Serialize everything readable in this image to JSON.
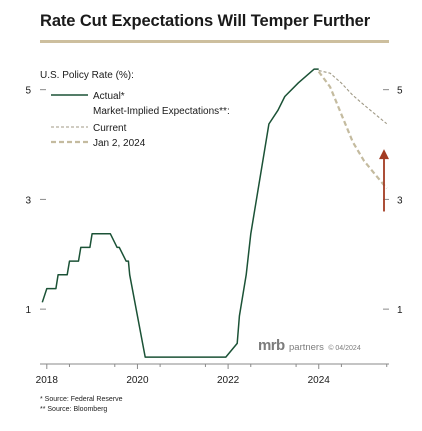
{
  "title": "Rate Cut Expectations Will Temper Further",
  "brand": {
    "mrb": "mrb",
    "partners": "partners",
    "date": "© 04/2024"
  },
  "footnotes": [
    "*  Source: Federal Reserve",
    "** Source: Bloomberg"
  ],
  "colors": {
    "actual": "#1b5236",
    "expectations": "#c4bb9f",
    "arrow": "#a33b22",
    "rule": "#cdbf9e",
    "axis": "#8a8a8a"
  },
  "chart_data": {
    "type": "line",
    "title": "Rate Cut Expectations Will Temper Further",
    "ylabel": "U.S. Policy Rate (%):",
    "xlabel": "",
    "xlim": [
      2017.85,
      2025.55
    ],
    "ylim": [
      0,
      5.65
    ],
    "xticks": [
      2018,
      2020,
      2022,
      2024
    ],
    "xtick_labels": [
      "2018",
      "2020",
      "2022",
      "2024"
    ],
    "yticks": [
      1,
      3,
      5
    ],
    "ytick_labels": [
      "1",
      "3",
      "5"
    ],
    "grid": false,
    "legend_placement": "top-left",
    "legend": [
      {
        "label": "Actual*",
        "style": "solid"
      },
      {
        "label": "Market-Implied Expectations**:",
        "style": "header"
      },
      {
        "label": "Current",
        "style": "dashed"
      },
      {
        "label": "Jan 2, 2024",
        "style": "dashed"
      }
    ],
    "series": [
      {
        "name": "Actual*",
        "x": [
          2017.9,
          2018.0,
          2018.2,
          2018.25,
          2018.45,
          2018.5,
          2018.7,
          2018.75,
          2018.95,
          2019.0,
          2019.4,
          2019.55,
          2019.6,
          2019.75,
          2019.8,
          2019.83,
          2020.17,
          2020.22,
          2021.95,
          2022.2,
          2022.25,
          2022.4,
          2022.5,
          2022.65,
          2022.8,
          2022.9,
          2023.1,
          2023.25,
          2023.55,
          2023.9,
          2024.0
        ],
        "y": [
          1.125,
          1.375,
          1.375,
          1.625,
          1.625,
          1.875,
          1.875,
          2.125,
          2.125,
          2.375,
          2.375,
          2.125,
          2.125,
          1.875,
          1.875,
          1.625,
          0.125,
          0.125,
          0.125,
          0.375,
          0.875,
          1.625,
          2.375,
          3.125,
          3.875,
          4.375,
          4.625,
          4.875,
          5.125,
          5.375,
          5.375
        ]
      },
      {
        "name": "Current",
        "x": [
          2024.0,
          2024.25,
          2024.5,
          2024.75,
          2025.0,
          2025.25,
          2025.5
        ],
        "y": [
          5.35,
          5.3,
          5.12,
          4.9,
          4.72,
          4.55,
          4.38
        ]
      },
      {
        "name": "Jan 2, 2024",
        "x": [
          2024.0,
          2024.25,
          2024.5,
          2024.75,
          2025.0,
          2025.25,
          2025.5
        ],
        "y": [
          5.33,
          5.05,
          4.55,
          4.05,
          3.7,
          3.45,
          3.2
        ]
      }
    ]
  }
}
